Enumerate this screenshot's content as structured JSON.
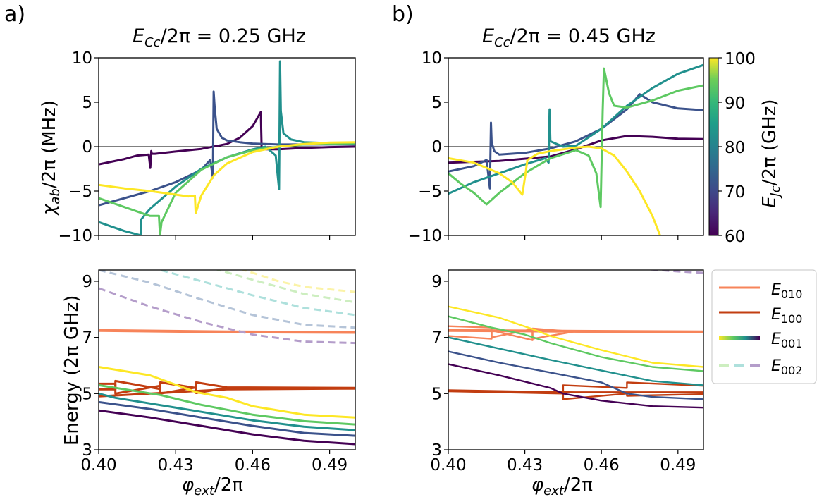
{
  "panel_labels": [
    "a)",
    "b)"
  ],
  "titles": [
    "$E_{Cc}/2\\pi = 0.25$ GHz",
    "$E_{Cc}/2\\pi = 0.45$ GHz"
  ],
  "title_parts": {
    "sym": "E",
    "sub": "Cc",
    "rest_a": "/2π = 0.25 GHz",
    "rest_b": "/2π = 0.45 GHz"
  },
  "colorbar": {
    "label": "E_Jc/2π (GHz)",
    "label_sym": "E",
    "label_sub": "Jc",
    "label_rest": "/2π (GHz)",
    "ticks": [
      "60",
      "70",
      "80",
      "90",
      "100"
    ],
    "range": [
      60,
      100
    ],
    "colormap": "viridis"
  },
  "legend": {
    "placement": "right",
    "items": [
      {
        "sym": "E",
        "sub": "010",
        "color": "#f7845a",
        "style": "solid"
      },
      {
        "sym": "E",
        "sub": "100",
        "color": "#c23d10",
        "style": "solid"
      },
      {
        "sym": "E",
        "sub": "001",
        "colors": [
          "#fde725",
          "#440154"
        ],
        "style": "solid"
      },
      {
        "sym": "E",
        "sub": "002",
        "colors": [
          "#cdeec0",
          "#b49dca"
        ],
        "style": "dashed"
      }
    ]
  },
  "xaxis": {
    "label": "φ̄_ext/2π",
    "label_sym": "φ",
    "label_sub": "ext",
    "label_rest": "/2π",
    "ticks": [
      "0.40",
      "0.43",
      "0.46",
      "0.49"
    ],
    "range": [
      0.4,
      0.5
    ]
  },
  "yaxis_top": {
    "label": "χ_ab/2π (MHz)",
    "label_sym": "χ",
    "label_sub": "ab",
    "label_rest": "/2π (MHz)",
    "ticks": [
      "10",
      "5",
      "0",
      "−5",
      "−10"
    ],
    "range": [
      -10,
      10
    ]
  },
  "yaxis_bottom": {
    "label": "Energy   (2π GHz)",
    "ticks": [
      "9",
      "7",
      "5",
      "3"
    ],
    "range": [
      3,
      9.4
    ]
  },
  "chart_data": [
    {
      "type": "line",
      "panel": "a-top",
      "x_range": [
        0.4,
        0.5
      ],
      "y_range": [
        -10,
        10
      ],
      "zero_line": true,
      "series": [
        {
          "color": "#440154",
          "ejc": 60,
          "x": [
            0.4,
            0.405,
            0.41,
            0.415,
            0.4195,
            0.4201,
            0.4205,
            0.4207,
            0.421,
            0.422,
            0.43,
            0.44,
            0.45,
            0.455,
            0.46,
            0.462,
            0.4632,
            0.4635,
            0.465,
            0.47,
            0.48,
            0.49,
            0.5
          ],
          "y": [
            -2.0,
            -1.7,
            -1.4,
            -1.0,
            -0.9,
            -2.4,
            -0.5,
            -0.8,
            -0.8,
            -0.8,
            -0.55,
            -0.25,
            0.3,
            1.0,
            2.3,
            3.3,
            3.9,
            0.0,
            -0.3,
            -0.3,
            -0.15,
            -0.05,
            0.0
          ]
        },
        {
          "color": "#3b528b",
          "ejc": 70,
          "x": [
            0.4,
            0.42,
            0.43,
            0.44,
            0.4435,
            0.4445,
            0.4448,
            0.4452,
            0.446,
            0.448,
            0.45,
            0.455,
            0.46,
            0.47,
            0.48,
            0.49,
            0.5
          ],
          "y": [
            -6.6,
            -5.0,
            -4.0,
            -2.6,
            -1.5,
            -3.5,
            6.2,
            4.5,
            2.0,
            1.0,
            0.7,
            0.5,
            0.35,
            0.25,
            0.25,
            0.25,
            0.25
          ]
        },
        {
          "color": "#21908d",
          "ejc": 80,
          "x": [
            0.4,
            0.405,
            0.41,
            0.4165,
            0.41655,
            0.42,
            0.43,
            0.44,
            0.45,
            0.46,
            0.465,
            0.469,
            0.4703,
            0.4707,
            0.471,
            0.472,
            0.475,
            0.48,
            0.49,
            0.5
          ],
          "y": [
            -8.5,
            -9.0,
            -9.5,
            -10,
            -8.2,
            -7.0,
            -4.5,
            -2.5,
            -1.2,
            -0.3,
            0.0,
            -1.0,
            -4.8,
            9.6,
            4.0,
            1.5,
            0.8,
            0.5,
            0.4,
            0.3
          ]
        },
        {
          "color": "#5ec962",
          "ejc": 90,
          "x": [
            0.4,
            0.41,
            0.42,
            0.4235,
            0.4239,
            0.4245,
            0.43,
            0.44,
            0.45,
            0.46,
            0.47,
            0.48,
            0.49,
            0.5
          ],
          "y": [
            -5.8,
            -6.8,
            -7.8,
            -7.8,
            -10,
            -8.5,
            -5.2,
            -2.6,
            -1.2,
            -0.4,
            0.0,
            0.25,
            0.35,
            0.4
          ]
        },
        {
          "color": "#fde725",
          "ejc": 100,
          "x": [
            0.4,
            0.41,
            0.42,
            0.43,
            0.435,
            0.4375,
            0.4378,
            0.44,
            0.445,
            0.45,
            0.46,
            0.47,
            0.48,
            0.49,
            0.5
          ],
          "y": [
            -4.3,
            -4.7,
            -5.0,
            -5.4,
            -5.6,
            -5.5,
            -7.5,
            -5.5,
            -3.2,
            -1.9,
            -0.6,
            0.0,
            0.3,
            0.45,
            0.5
          ]
        }
      ]
    },
    {
      "type": "line",
      "panel": "b-top",
      "x_range": [
        0.4,
        0.5
      ],
      "y_range": [
        -10,
        10
      ],
      "zero_line": true,
      "series": [
        {
          "color": "#440154",
          "ejc": 60,
          "x": [
            0.4,
            0.42,
            0.44,
            0.45,
            0.46,
            0.47,
            0.48,
            0.49,
            0.5
          ],
          "y": [
            -1.8,
            -1.6,
            -1.1,
            -0.3,
            0.7,
            1.2,
            1.1,
            0.9,
            0.85
          ]
        },
        {
          "color": "#3b528b",
          "ejc": 70,
          "x": [
            0.4,
            0.41,
            0.415,
            0.4163,
            0.4167,
            0.417,
            0.418,
            0.42,
            0.43,
            0.44,
            0.45,
            0.46,
            0.47,
            0.475,
            0.48,
            0.49,
            0.5
          ],
          "y": [
            -2.8,
            -2.2,
            -1.5,
            -4.7,
            2.7,
            0.5,
            -0.5,
            -0.9,
            -0.7,
            -0.2,
            0.6,
            2.0,
            4.2,
            5.9,
            5.0,
            4.3,
            4.1
          ]
        },
        {
          "color": "#21908d",
          "ejc": 80,
          "x": [
            0.4,
            0.41,
            0.42,
            0.43,
            0.438,
            0.4393,
            0.4397,
            0.44,
            0.445,
            0.45,
            0.46,
            0.47,
            0.48,
            0.49,
            0.5
          ],
          "y": [
            -5.3,
            -4.0,
            -3.0,
            -2.0,
            -1.3,
            -1.8,
            4.2,
            0.6,
            0.0,
            0.1,
            2.0,
            4.6,
            6.6,
            8.2,
            9.2
          ]
        },
        {
          "color": "#5ec962",
          "ejc": 90,
          "x": [
            0.4,
            0.405,
            0.41,
            0.415,
            0.42,
            0.43,
            0.44,
            0.45,
            0.455,
            0.458,
            0.4597,
            0.4605,
            0.461,
            0.463,
            0.465,
            0.47,
            0.48,
            0.49,
            0.5
          ],
          "y": [
            -3.0,
            -4.2,
            -5.2,
            -6.5,
            -5.2,
            -3.0,
            -1.3,
            -0.4,
            -1.0,
            -3.0,
            -6.8,
            4.0,
            8.8,
            6.0,
            4.6,
            4.4,
            5.2,
            6.3,
            6.9
          ]
        },
        {
          "color": "#fde725",
          "ejc": 100,
          "x": [
            0.4,
            0.41,
            0.42,
            0.425,
            0.429,
            0.4302,
            0.431,
            0.435,
            0.44,
            0.45,
            0.455,
            0.46,
            0.465,
            0.47,
            0.475,
            0.48,
            0.483
          ],
          "y": [
            -1.3,
            -1.8,
            -3.0,
            -4.0,
            -5.4,
            -3.2,
            -1.5,
            -0.8,
            -0.5,
            -0.1,
            0.0,
            -0.2,
            -1.0,
            -2.8,
            -5.0,
            -7.8,
            -10
          ]
        }
      ]
    },
    {
      "type": "line",
      "panel": "a-bottom",
      "x_range": [
        0.4,
        0.5
      ],
      "y_range": [
        3,
        9.4
      ],
      "series": [
        {
          "name": "E_010",
          "color": "#f7845a",
          "width": 4,
          "x": [
            0.4,
            0.45,
            0.5
          ],
          "y": [
            7.25,
            7.2,
            7.18
          ]
        },
        {
          "color": "#c23d10",
          "x": [
            0.4,
            0.4065,
            0.4065,
            0.424,
            0.424,
            0.438,
            0.438,
            0.45,
            0.5
          ],
          "y": [
            5.35,
            5.35,
            5.0,
            5.28,
            5.0,
            5.22,
            5.02,
            5.2,
            5.18
          ]
        },
        {
          "color": "#c23d10",
          "x": [
            0.4,
            0.4065,
            0.4065,
            0.424,
            0.424,
            0.438,
            0.438,
            0.45,
            0.5
          ],
          "y": [
            5.15,
            5.15,
            5.45,
            5.16,
            5.4,
            5.2,
            5.4,
            5.22,
            5.2
          ]
        },
        {
          "color": "#c23d10",
          "x": [
            0.4,
            0.45,
            0.5
          ],
          "y": [
            4.9,
            5.15,
            5.18
          ]
        },
        {
          "name": "E_001",
          "color": "#440154",
          "x": [
            0.4,
            0.42,
            0.44,
            0.46,
            0.48,
            0.5
          ],
          "y": [
            4.4,
            4.15,
            3.85,
            3.55,
            3.32,
            3.2
          ]
        },
        {
          "color": "#3b528b",
          "x": [
            0.4,
            0.42,
            0.44,
            0.46,
            0.48,
            0.5
          ],
          "y": [
            4.7,
            4.45,
            4.15,
            3.85,
            3.6,
            3.5
          ]
        },
        {
          "color": "#21908d",
          "x": [
            0.4,
            0.4065,
            0.42,
            0.44,
            0.46,
            0.48,
            0.5
          ],
          "y": [
            5.0,
            4.85,
            4.65,
            4.35,
            4.05,
            3.82,
            3.7
          ]
        },
        {
          "color": "#5ec962",
          "x": [
            0.4,
            0.424,
            0.44,
            0.46,
            0.48,
            0.5
          ],
          "y": [
            5.3,
            4.95,
            4.6,
            4.25,
            4.02,
            3.9
          ]
        },
        {
          "color": "#fde725",
          "x": [
            0.4,
            0.42,
            0.438,
            0.45,
            0.46,
            0.48,
            0.5
          ],
          "y": [
            5.95,
            5.65,
            5.05,
            4.85,
            4.55,
            4.25,
            4.15
          ]
        },
        {
          "name": "E_002",
          "color": "#b49dca",
          "dashed": true,
          "x": [
            0.4,
            0.42,
            0.44,
            0.46,
            0.48,
            0.5
          ],
          "y": [
            8.75,
            8.1,
            7.55,
            7.1,
            6.85,
            6.8
          ]
        },
        {
          "color": "#b5c4d8",
          "dashed": true,
          "x": [
            0.4,
            0.42,
            0.44,
            0.46,
            0.48,
            0.5
          ],
          "y": [
            9.4,
            8.95,
            8.35,
            7.8,
            7.45,
            7.35
          ]
        },
        {
          "color": "#aee0dc",
          "dashed": true,
          "x": [
            0.42,
            0.44,
            0.46,
            0.48,
            0.5
          ],
          "y": [
            9.5,
            9.0,
            8.5,
            8.05,
            7.8
          ]
        },
        {
          "color": "#cdeec0",
          "dashed": true,
          "x": [
            0.445,
            0.46,
            0.48,
            0.5
          ],
          "y": [
            9.45,
            9.05,
            8.55,
            8.25
          ]
        },
        {
          "color": "#fbf3a8",
          "dashed": true,
          "x": [
            0.455,
            0.47,
            0.48,
            0.5
          ],
          "y": [
            9.45,
            9.0,
            8.8,
            8.62
          ]
        }
      ]
    },
    {
      "type": "line",
      "panel": "b-bottom",
      "x_range": [
        0.4,
        0.5
      ],
      "y_range": [
        3,
        9.4
      ],
      "series": [
        {
          "color": "#f7845a",
          "x": [
            0.4,
            0.417,
            0.417,
            0.433,
            0.433,
            0.45,
            0.5
          ],
          "y": [
            7.4,
            7.35,
            7.0,
            7.3,
            6.95,
            7.22,
            7.2
          ]
        },
        {
          "color": "#f7845a",
          "x": [
            0.4,
            0.417,
            0.417,
            0.433,
            0.433,
            0.45,
            0.5
          ],
          "y": [
            7.05,
            6.95,
            7.25,
            6.9,
            7.32,
            7.2,
            7.18
          ]
        },
        {
          "color": "#f7845a",
          "width": 4,
          "x": [
            0.4,
            0.45,
            0.5
          ],
          "y": [
            7.25,
            7.22,
            7.2
          ]
        },
        {
          "color": "#c23d10",
          "x": [
            0.4,
            0.445,
            0.445,
            0.47,
            0.47,
            0.5
          ],
          "y": [
            5.12,
            5.05,
            5.3,
            5.2,
            5.4,
            5.28
          ]
        },
        {
          "color": "#c23d10",
          "x": [
            0.4,
            0.445,
            0.445,
            0.47,
            0.47,
            0.5
          ],
          "y": [
            5.08,
            5.0,
            4.8,
            5.0,
            4.92,
            4.98
          ]
        },
        {
          "color": "#c23d10",
          "x": [
            0.4,
            0.45,
            0.5
          ],
          "y": [
            5.1,
            5.05,
            5.05
          ]
        },
        {
          "color": "#440154",
          "x": [
            0.4,
            0.42,
            0.44,
            0.445,
            0.46,
            0.48,
            0.5
          ],
          "y": [
            6.05,
            5.65,
            5.2,
            5.0,
            4.75,
            4.55,
            4.5
          ]
        },
        {
          "color": "#3b528b",
          "x": [
            0.4,
            0.42,
            0.44,
            0.46,
            0.47,
            0.48,
            0.5
          ],
          "y": [
            6.5,
            6.1,
            5.75,
            5.4,
            5.0,
            4.88,
            4.8
          ]
        },
        {
          "color": "#21908d",
          "x": [
            0.4,
            0.42,
            0.44,
            0.46,
            0.48,
            0.5
          ],
          "y": [
            7.0,
            6.6,
            6.2,
            5.82,
            5.45,
            5.3
          ]
        },
        {
          "color": "#5ec962",
          "x": [
            0.4,
            0.417,
            0.43,
            0.44,
            0.46,
            0.48,
            0.5
          ],
          "y": [
            7.75,
            7.35,
            7.1,
            6.8,
            6.3,
            5.95,
            5.8
          ]
        },
        {
          "color": "#fde725",
          "x": [
            0.4,
            0.42,
            0.433,
            0.44,
            0.46,
            0.48,
            0.5
          ],
          "y": [
            8.1,
            7.7,
            7.3,
            7.05,
            6.55,
            6.1,
            5.95
          ]
        },
        {
          "color": "#b49dca",
          "dashed": true,
          "x": [
            0.475,
            0.49,
            0.5
          ],
          "y": [
            9.45,
            9.35,
            9.3
          ]
        }
      ]
    }
  ]
}
